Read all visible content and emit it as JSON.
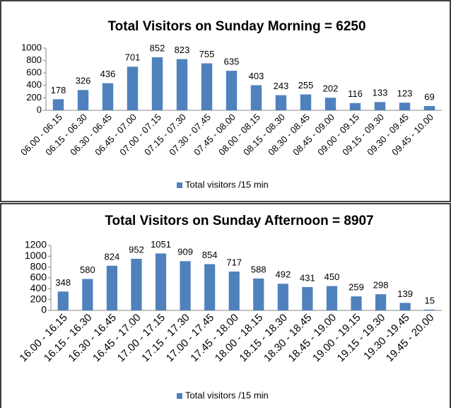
{
  "chart_data": [
    {
      "type": "bar",
      "title": "Total Visitors on Sunday Morning = 6250",
      "categories": [
        "06.00 - 06.15",
        "06.15 - 06.30",
        "06.30 - 06.45",
        "06.45 - 07.00",
        "07.00 - 07.15",
        "07.15 - 07.30",
        "07.30 - 07.45",
        "07.45 - 08.00",
        "08.00 - 08.15",
        "08.15 - 08.30",
        "08.30 - 08.45",
        "08.45 - 09.00",
        "09.00 - 09.15",
        "09.15 - 09.30",
        "09.30 - 09.45",
        "09.45 - 10.00"
      ],
      "series": [
        {
          "name": "Total visitors /15 min",
          "color": "#4f81bd",
          "values": [
            178,
            326,
            436,
            701,
            852,
            823,
            755,
            635,
            403,
            243,
            255,
            202,
            116,
            133,
            123,
            69
          ]
        }
      ],
      "ylim": [
        0,
        1000
      ],
      "yticks": [
        0,
        200,
        400,
        600,
        800,
        1000
      ],
      "legend": "bottom"
    },
    {
      "type": "bar",
      "title": "Total Visitors on Sunday Afternoon = 8907",
      "categories": [
        "16.00 - 16.15",
        "16.15 - 16.30",
        "16.30 - 16.45",
        "16.45 - 17.00",
        "17.00 - 17.15",
        "17.15 - 17.30",
        "17.00 - 17.45",
        "17.45 - 18.00",
        "18.00 - 18.15",
        "18.15 - 18.30",
        "18.30 - 18.45",
        "18.45 - 19.00",
        "19.00 - 19.15",
        "19.15 - 19.30",
        "19.30 -19.45",
        "19.45 - 20.00"
      ],
      "series": [
        {
          "name": "Total visitors /15 min",
          "color": "#4f81bd",
          "values": [
            348,
            580,
            824,
            952,
            1051,
            909,
            854,
            717,
            588,
            492,
            431,
            450,
            259,
            298,
            139,
            15
          ]
        }
      ],
      "ylim": [
        0,
        1200
      ],
      "yticks": [
        0,
        200,
        400,
        600,
        800,
        1000,
        1200
      ],
      "legend": "bottom"
    }
  ]
}
